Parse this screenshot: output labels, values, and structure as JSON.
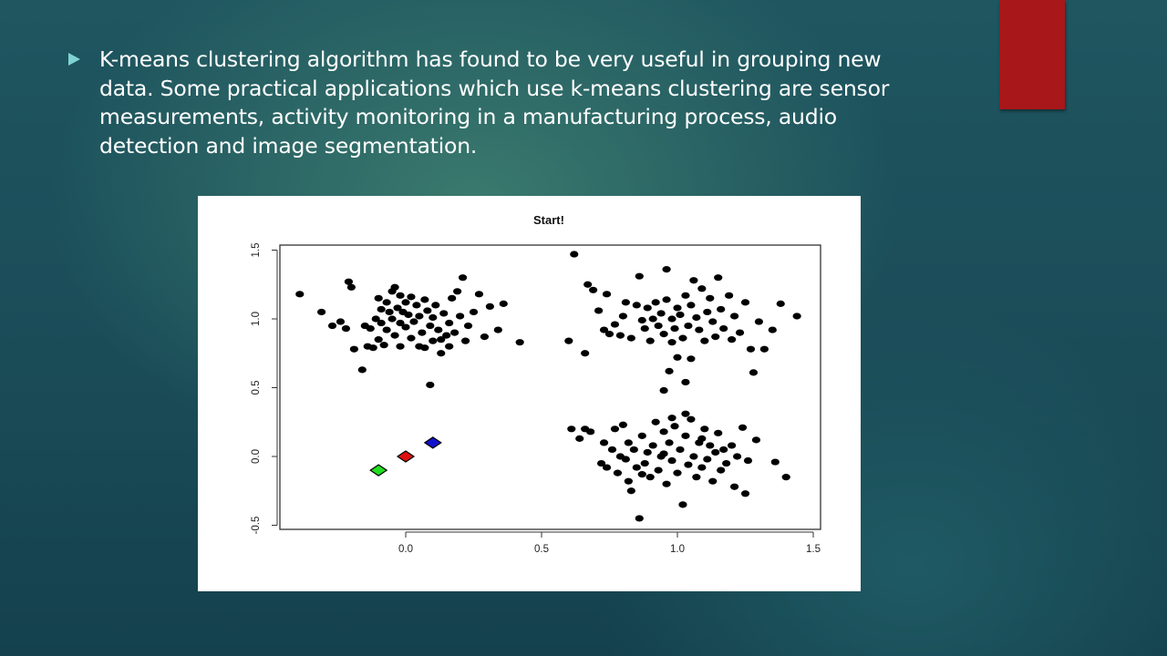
{
  "slide": {
    "bullet_text": "K-means clustering algorithm has found to be very useful in grouping new data. Some practical applications which use k-means clustering are sensor measurements, activity monitoring in a manufacturing process, audio detection and image segmentation.",
    "bullet_icon": "triangle-bullet-icon",
    "colors": {
      "background": "#1f5660",
      "accent_block": "#a8171a",
      "bullet": "#7fd3d1",
      "text": "#ffffff"
    }
  },
  "chart_data": {
    "type": "scatter",
    "title": "Start!",
    "xlabel": "",
    "ylabel": "",
    "xlim": [
      -0.45,
      1.5
    ],
    "ylim": [
      -0.5,
      1.55
    ],
    "x_ticks": [
      "0.0",
      "0.5",
      "1.0",
      "1.5"
    ],
    "y_ticks": [
      "-0.5",
      "0.0",
      "0.5",
      "1.0",
      "1.5"
    ],
    "grid": false,
    "legend": "none",
    "centroids": [
      {
        "x": -0.1,
        "y": -0.1,
        "color": "#22dd22"
      },
      {
        "x": 0.0,
        "y": 0.0,
        "color": "#dd1111"
      },
      {
        "x": 0.1,
        "y": 0.1,
        "color": "#1111cc"
      }
    ],
    "points": [
      [
        -0.39,
        1.18
      ],
      [
        -0.31,
        1.05
      ],
      [
        -0.27,
        0.95
      ],
      [
        -0.24,
        0.98
      ],
      [
        -0.22,
        0.93
      ],
      [
        -0.21,
        1.27
      ],
      [
        -0.2,
        1.23
      ],
      [
        -0.19,
        0.78
      ],
      [
        -0.16,
        0.63
      ],
      [
        -0.15,
        0.95
      ],
      [
        -0.14,
        0.8
      ],
      [
        -0.13,
        0.93
      ],
      [
        -0.12,
        0.79
      ],
      [
        -0.11,
        1.0
      ],
      [
        -0.1,
        0.85
      ],
      [
        -0.1,
        1.15
      ],
      [
        -0.09,
        1.07
      ],
      [
        -0.09,
        0.97
      ],
      [
        -0.08,
        0.81
      ],
      [
        -0.07,
        1.12
      ],
      [
        -0.07,
        0.92
      ],
      [
        -0.06,
        1.05
      ],
      [
        -0.05,
        1.2
      ],
      [
        -0.05,
        1.0
      ],
      [
        -0.04,
        1.23
      ],
      [
        -0.04,
        0.88
      ],
      [
        -0.03,
        1.08
      ],
      [
        -0.02,
        1.17
      ],
      [
        -0.02,
        0.97
      ],
      [
        -0.01,
        1.05
      ],
      [
        0.0,
        0.94
      ],
      [
        0.0,
        1.12
      ],
      [
        0.01,
        1.03
      ],
      [
        0.02,
        0.86
      ],
      [
        0.02,
        1.16
      ],
      [
        0.03,
        0.98
      ],
      [
        0.04,
        1.1
      ],
      [
        0.05,
        1.02
      ],
      [
        0.05,
        0.8
      ],
      [
        0.06,
        0.9
      ],
      [
        0.07,
        1.14
      ],
      [
        0.08,
        1.06
      ],
      [
        0.09,
        0.95
      ],
      [
        0.1,
        1.01
      ],
      [
        0.1,
        0.84
      ],
      [
        0.11,
        1.1
      ],
      [
        0.12,
        0.92
      ],
      [
        0.13,
        0.85
      ],
      [
        0.14,
        1.04
      ],
      [
        0.15,
        0.88
      ],
      [
        0.16,
        0.97
      ],
      [
        0.17,
        1.15
      ],
      [
        0.18,
        0.9
      ],
      [
        0.19,
        1.2
      ],
      [
        0.2,
        1.02
      ],
      [
        0.21,
        1.3
      ],
      [
        0.22,
        0.84
      ],
      [
        0.23,
        0.95
      ],
      [
        0.25,
        1.05
      ],
      [
        0.27,
        1.18
      ],
      [
        0.29,
        0.87
      ],
      [
        0.31,
        1.09
      ],
      [
        0.34,
        0.92
      ],
      [
        0.36,
        1.11
      ],
      [
        0.42,
        0.83
      ],
      [
        0.09,
        0.52
      ],
      [
        0.13,
        0.75
      ],
      [
        0.16,
        0.8
      ],
      [
        0.07,
        0.79
      ],
      [
        -0.02,
        0.8
      ],
      [
        0.62,
        1.47
      ],
      [
        0.6,
        0.84
      ],
      [
        0.66,
        0.75
      ],
      [
        0.67,
        1.25
      ],
      [
        0.69,
        1.21
      ],
      [
        0.71,
        1.06
      ],
      [
        0.73,
        0.92
      ],
      [
        0.74,
        1.18
      ],
      [
        0.75,
        0.89
      ],
      [
        0.77,
        0.96
      ],
      [
        0.79,
        0.88
      ],
      [
        0.8,
        1.02
      ],
      [
        0.81,
        1.12
      ],
      [
        0.83,
        0.86
      ],
      [
        0.85,
        1.1
      ],
      [
        0.86,
        1.31
      ],
      [
        0.87,
        0.99
      ],
      [
        0.88,
        0.93
      ],
      [
        0.89,
        1.08
      ],
      [
        0.9,
        0.84
      ],
      [
        0.91,
        1.0
      ],
      [
        0.92,
        1.12
      ],
      [
        0.93,
        0.95
      ],
      [
        0.94,
        1.04
      ],
      [
        0.95,
        0.89
      ],
      [
        0.96,
        1.36
      ],
      [
        0.96,
        1.14
      ],
      [
        0.97,
        0.62
      ],
      [
        0.98,
        1.0
      ],
      [
        0.98,
        0.83
      ],
      [
        0.99,
        0.93
      ],
      [
        1.0,
        1.08
      ],
      [
        1.01,
        1.03
      ],
      [
        1.02,
        0.86
      ],
      [
        1.03,
        0.54
      ],
      [
        1.03,
        1.17
      ],
      [
        1.04,
        0.95
      ],
      [
        1.05,
        1.1
      ],
      [
        1.05,
        0.71
      ],
      [
        1.06,
        1.28
      ],
      [
        1.07,
        1.01
      ],
      [
        1.08,
        0.92
      ],
      [
        1.09,
        1.22
      ],
      [
        1.1,
        0.84
      ],
      [
        1.11,
        1.05
      ],
      [
        1.12,
        1.15
      ],
      [
        1.13,
        0.98
      ],
      [
        1.14,
        0.87
      ],
      [
        1.15,
        1.3
      ],
      [
        1.16,
        1.07
      ],
      [
        1.17,
        0.93
      ],
      [
        1.19,
        1.17
      ],
      [
        1.2,
        0.85
      ],
      [
        1.21,
        1.02
      ],
      [
        1.23,
        0.9
      ],
      [
        1.25,
        1.12
      ],
      [
        1.27,
        0.78
      ],
      [
        1.28,
        0.61
      ],
      [
        1.3,
        0.98
      ],
      [
        1.32,
        0.78
      ],
      [
        1.35,
        0.92
      ],
      [
        1.38,
        1.11
      ],
      [
        1.44,
        1.02
      ],
      [
        0.95,
        0.48
      ],
      [
        1.0,
        0.72
      ],
      [
        0.61,
        0.2
      ],
      [
        0.64,
        0.13
      ],
      [
        0.66,
        0.2
      ],
      [
        0.68,
        0.18
      ],
      [
        0.72,
        -0.05
      ],
      [
        0.73,
        0.1
      ],
      [
        0.74,
        -0.08
      ],
      [
        0.76,
        0.05
      ],
      [
        0.77,
        0.2
      ],
      [
        0.78,
        -0.12
      ],
      [
        0.79,
        0.0
      ],
      [
        0.8,
        0.23
      ],
      [
        0.81,
        -0.02
      ],
      [
        0.82,
        0.1
      ],
      [
        0.82,
        -0.18
      ],
      [
        0.83,
        -0.25
      ],
      [
        0.84,
        0.05
      ],
      [
        0.85,
        -0.08
      ],
      [
        0.86,
        -0.45
      ],
      [
        0.87,
        0.15
      ],
      [
        0.88,
        -0.05
      ],
      [
        0.89,
        0.03
      ],
      [
        0.9,
        -0.15
      ],
      [
        0.91,
        0.08
      ],
      [
        0.92,
        0.25
      ],
      [
        0.93,
        -0.1
      ],
      [
        0.94,
        0.0
      ],
      [
        0.95,
        0.18
      ],
      [
        0.96,
        -0.2
      ],
      [
        0.97,
        0.1
      ],
      [
        0.98,
        -0.03
      ],
      [
        0.99,
        0.22
      ],
      [
        1.0,
        -0.12
      ],
      [
        1.01,
        0.05
      ],
      [
        1.02,
        -0.35
      ],
      [
        1.03,
        0.15
      ],
      [
        1.04,
        -0.06
      ],
      [
        1.05,
        0.27
      ],
      [
        1.06,
        0.0
      ],
      [
        1.07,
        -0.15
      ],
      [
        1.08,
        0.1
      ],
      [
        1.09,
        -0.08
      ],
      [
        1.1,
        0.2
      ],
      [
        1.11,
        -0.02
      ],
      [
        1.12,
        0.08
      ],
      [
        1.13,
        -0.18
      ],
      [
        1.14,
        0.03
      ],
      [
        1.15,
        0.17
      ],
      [
        1.16,
        -0.1
      ],
      [
        1.17,
        0.05
      ],
      [
        1.18,
        -0.05
      ],
      [
        1.2,
        0.08
      ],
      [
        1.21,
        -0.22
      ],
      [
        1.22,
        0.0
      ],
      [
        1.24,
        0.21
      ],
      [
        1.25,
        -0.27
      ],
      [
        1.26,
        -0.03
      ],
      [
        1.29,
        0.12
      ],
      [
        1.36,
        -0.04
      ],
      [
        1.4,
        -0.15
      ],
      [
        1.03,
        0.31
      ],
      [
        0.98,
        0.28
      ],
      [
        0.95,
        0.02
      ],
      [
        1.09,
        0.13
      ],
      [
        0.87,
        -0.13
      ]
    ]
  }
}
